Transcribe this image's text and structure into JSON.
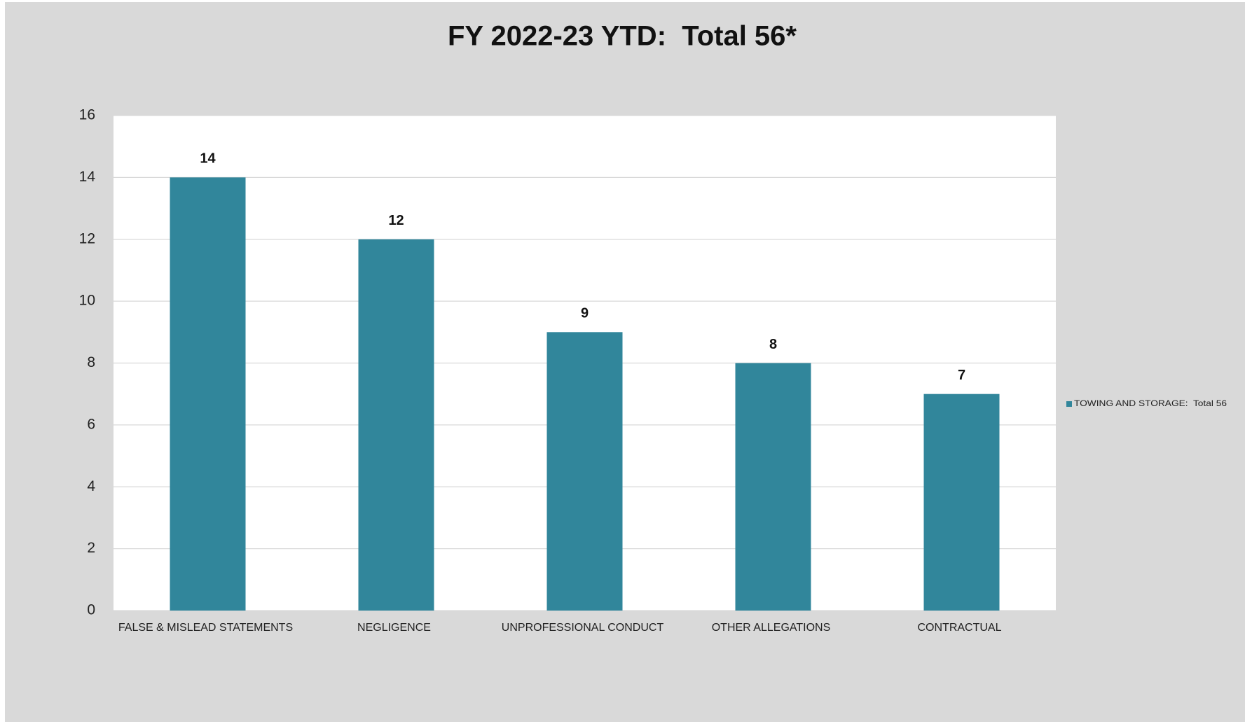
{
  "chart_data": {
    "type": "bar",
    "title": "FY 2022-23 YTD:  Total 56*",
    "categories": [
      "FALSE & MISLEAD STATEMENTS",
      "NEGLIGENCE",
      "UNPROFESSIONAL CONDUCT",
      "OTHER ALLEGATIONS",
      "CONTRACTUAL"
    ],
    "series": [
      {
        "name": "TOWING AND STORAGE:  Total 56",
        "color": "#31869b",
        "values": [
          14,
          12,
          9,
          8,
          7
        ]
      }
    ],
    "ylim": [
      0,
      16
    ],
    "yticks": [
      0,
      2,
      4,
      6,
      8,
      10,
      12,
      14,
      16
    ],
    "grid": true,
    "legend": "right"
  }
}
